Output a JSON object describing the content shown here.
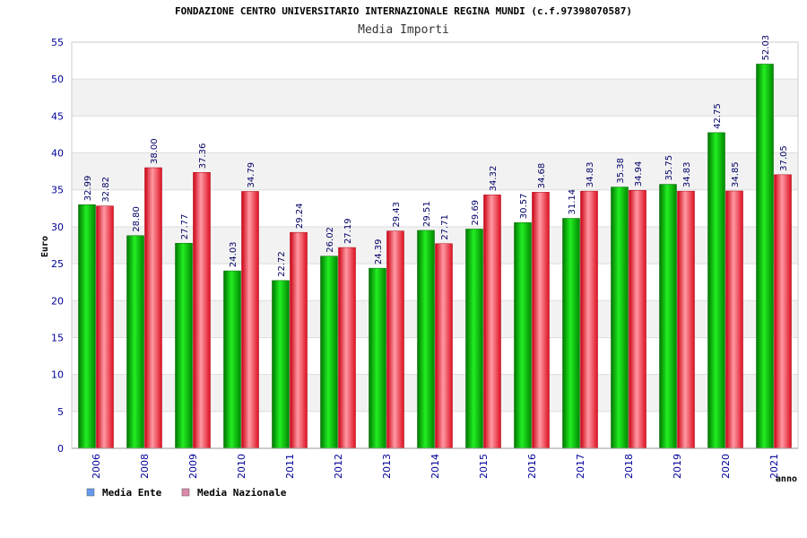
{
  "chart_data": {
    "type": "bar",
    "title": "FONDAZIONE CENTRO UNIVERSITARIO INTERNAZIONALE REGINA MUNDI (c.f.97398070587)",
    "subtitle": "Media Importi",
    "xlabel": "anno",
    "ylabel": "Euro",
    "ylim": [
      0,
      55
    ],
    "yticks": [
      0,
      5,
      10,
      15,
      20,
      25,
      30,
      35,
      40,
      45,
      50,
      55
    ],
    "grid": true,
    "legend_position": "bottom-left",
    "categories": [
      "2006",
      "2008",
      "2009",
      "2010",
      "2011",
      "2012",
      "2013",
      "2014",
      "2015",
      "2016",
      "2017",
      "2018",
      "2019",
      "2020",
      "2021"
    ],
    "series": [
      {
        "name": "Media Ente",
        "color": "#00bb00",
        "legend_color": "#6699ee",
        "values": [
          32.99,
          28.8,
          27.77,
          24.03,
          22.72,
          26.02,
          24.39,
          29.51,
          29.69,
          30.57,
          31.14,
          35.38,
          35.75,
          42.75,
          52.03
        ],
        "labels": [
          "32.99",
          "28.80",
          "27.77",
          "24.03",
          "22.72",
          "26.02",
          "24.39",
          "29.51",
          "29.69",
          "30.57",
          "31.14",
          "35.38",
          "35.75",
          "42.75",
          "52.03"
        ]
      },
      {
        "name": "Media Nazionale",
        "color": "#ee2233",
        "legend_color": "#dd88aa",
        "values": [
          32.82,
          38.0,
          37.36,
          34.79,
          29.24,
          27.19,
          29.43,
          27.71,
          34.32,
          34.68,
          34.83,
          34.94,
          34.83,
          34.85,
          37.05
        ],
        "labels": [
          "32.82",
          "38.00",
          "37.36",
          "34.79",
          "29.24",
          "27.19",
          "29.43",
          "27.71",
          "34.32",
          "34.68",
          "34.83",
          "34.94",
          "34.83",
          "34.85",
          "37.05"
        ]
      }
    ]
  }
}
